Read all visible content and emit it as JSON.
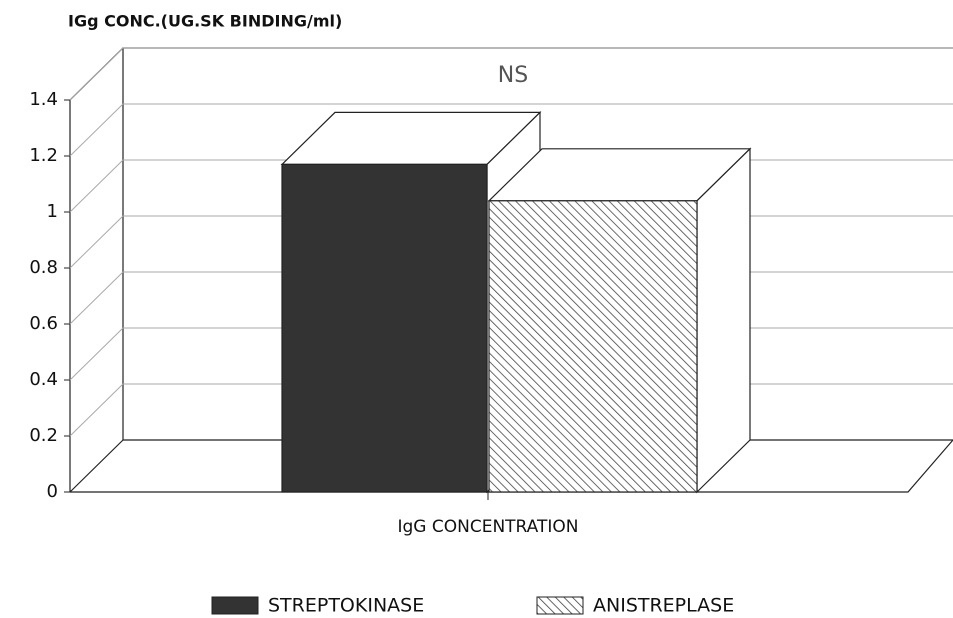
{
  "chart_data": {
    "type": "bar3d",
    "y_axis_label": "IGg CONC.(UG.SK BINDING/ml)",
    "annotation": "NS",
    "categories": [
      "IgG CONCENTRATION"
    ],
    "series": [
      {
        "name": "STREPTOKINASE",
        "color": "#333333",
        "pattern": "solid",
        "values": [
          1.17
        ]
      },
      {
        "name": "ANISTREPLASE",
        "color": "#444444",
        "pattern": "hatch",
        "values": [
          1.04
        ]
      }
    ],
    "ylim": [
      0,
      1.4
    ],
    "yticks": [
      0,
      0.2,
      0.4,
      0.6,
      0.8,
      1,
      1.2,
      1.4
    ],
    "grid": true
  }
}
